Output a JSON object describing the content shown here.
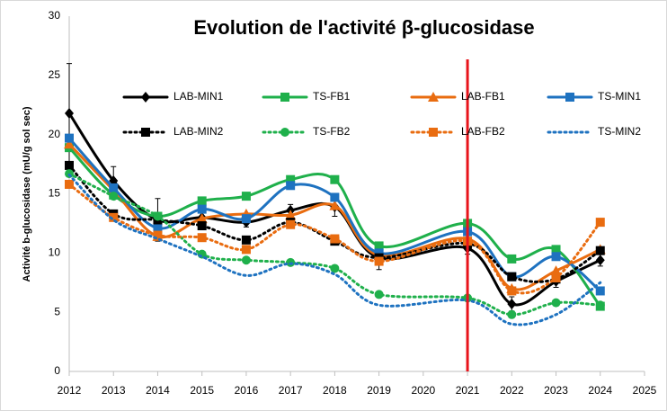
{
  "chart_data": {
    "type": "line",
    "title": "Evolution de l'activité β-glucosidase",
    "y_label": "Activité b-glucosidase (mU/g sol sec)",
    "x": [
      2012,
      2013,
      2014,
      2015,
      2016,
      2017,
      2018,
      2019,
      2021,
      2022,
      2023,
      2024
    ],
    "xlim": [
      2012,
      2025
    ],
    "xticks": [
      2012,
      2013,
      2014,
      2015,
      2016,
      2017,
      2018,
      2019,
      2020,
      2021,
      2022,
      2023,
      2024,
      2025
    ],
    "ylim": [
      0,
      30
    ],
    "yticks": [
      0,
      5,
      10,
      15,
      20,
      25,
      30
    ],
    "grid": false,
    "smooth": true,
    "vline": {
      "x": 2021,
      "color": "#e8141b"
    },
    "series": [
      {
        "name": "LAB-MIN1",
        "color": "#000000",
        "dash": false,
        "marker": "diamond",
        "values": [
          21.8,
          16.1,
          12.8,
          13.0,
          12.6,
          13.6,
          13.9,
          9.6,
          10.4,
          5.7,
          7.6,
          9.4
        ],
        "errors": [
          4.2,
          1.2,
          1.8,
          0.6,
          0.4,
          0.5,
          0.8,
          1.0,
          0.5,
          0.6,
          0.5,
          0.5
        ]
      },
      {
        "name": "TS-FB1",
        "color": "#1fb04b",
        "dash": false,
        "marker": "square",
        "values": [
          18.9,
          14.9,
          13.1,
          14.4,
          14.8,
          16.2,
          16.2,
          10.6,
          12.5,
          9.5,
          10.3,
          5.5
        ]
      },
      {
        "name": "LAB-FB1",
        "color": "#e96c10",
        "dash": false,
        "marker": "triangle",
        "values": [
          19.2,
          15.3,
          11.4,
          12.9,
          13.3,
          13.2,
          14.0,
          9.8,
          11.2,
          7.0,
          8.5,
          10.3
        ]
      },
      {
        "name": "TS-MIN1",
        "color": "#1e72c0",
        "dash": false,
        "marker": "square",
        "values": [
          19.7,
          15.5,
          12.1,
          13.7,
          12.9,
          15.7,
          14.7,
          10.0,
          11.8,
          8.0,
          9.7,
          6.8
        ]
      },
      {
        "name": "LAB-MIN2",
        "color": "#000000",
        "dash": true,
        "marker": "square",
        "values": [
          17.4,
          13.3,
          12.8,
          12.3,
          11.1,
          12.6,
          11.0,
          9.6,
          10.8,
          8.0,
          7.8,
          10.2
        ]
      },
      {
        "name": "TS-FB2",
        "color": "#1fb04b",
        "dash": true,
        "marker": "circle",
        "values": [
          16.7,
          14.8,
          13.1,
          9.9,
          9.4,
          9.2,
          8.7,
          6.5,
          6.2,
          4.8,
          5.8,
          5.6
        ]
      },
      {
        "name": "LAB-FB2",
        "color": "#e96c10",
        "dash": true,
        "marker": "square",
        "values": [
          15.8,
          13.0,
          11.5,
          11.3,
          10.3,
          12.4,
          11.2,
          9.3,
          11.0,
          6.8,
          7.9,
          12.6
        ]
      },
      {
        "name": "TS-MIN2",
        "color": "#1e72c0",
        "dash": true,
        "marker": "none",
        "values": [
          16.6,
          12.8,
          11.2,
          9.7,
          8.1,
          9.1,
          8.2,
          5.6,
          6.0,
          4.0,
          4.8,
          7.5
        ]
      }
    ]
  }
}
